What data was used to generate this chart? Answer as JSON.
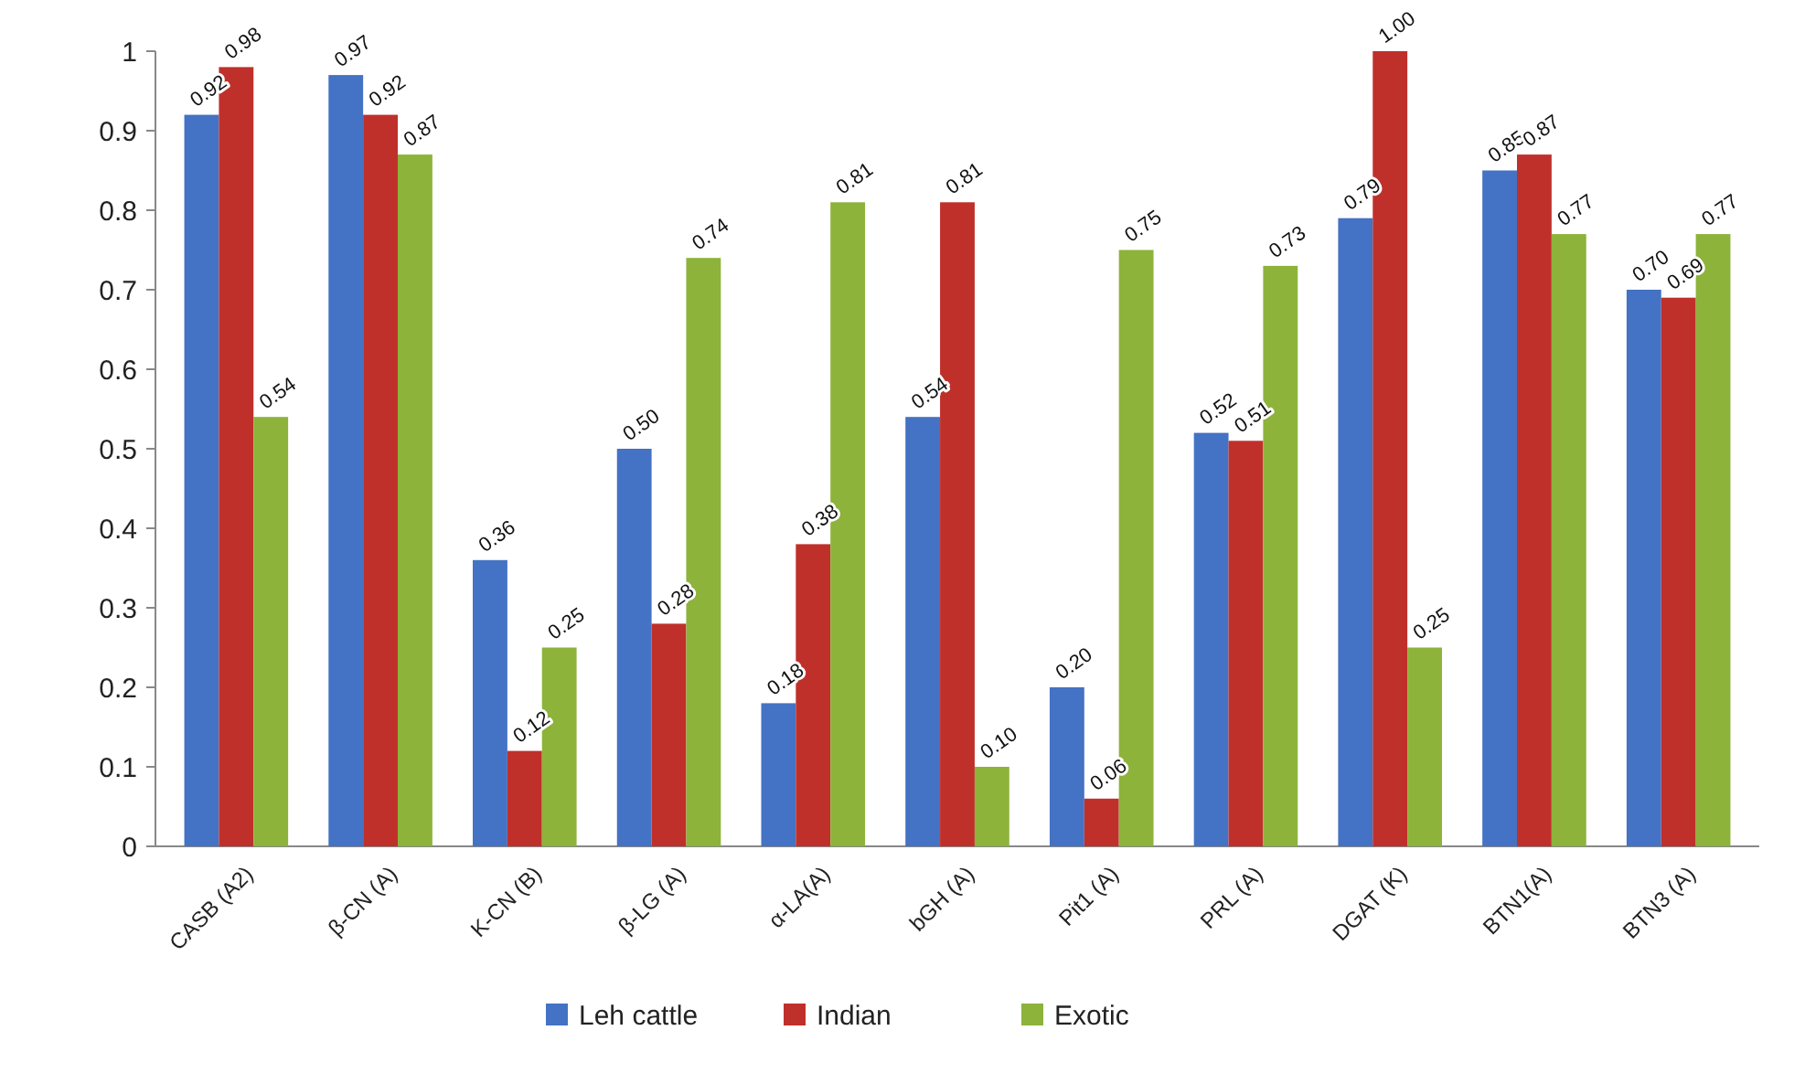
{
  "chart_data": {
    "type": "bar",
    "categories": [
      "CASB (A2)",
      "β-CN (A)",
      "K-CN (B)",
      "β-LG (A)",
      "α-LA(A)",
      "bGH (A)",
      "Pit1 (A)",
      "PRL (A)",
      "DGAT (K)",
      "BTN1(A)",
      "BTN3 (A)"
    ],
    "series": [
      {
        "name": "Leh cattle",
        "color": "#4472c4",
        "values": [
          0.92,
          0.97,
          0.36,
          0.5,
          0.18,
          0.54,
          0.2,
          0.52,
          0.79,
          0.85,
          0.7
        ],
        "value_labels": [
          "0.92",
          "0.97",
          "0.36",
          "0.50",
          "0.18",
          "0.54",
          "0.20",
          "0.52",
          "0.79",
          "0.85",
          "0.70"
        ]
      },
      {
        "name": "Indian",
        "color": "#c0302b",
        "values": [
          0.98,
          0.92,
          0.12,
          0.28,
          0.38,
          0.81,
          0.06,
          0.51,
          1.0,
          0.87,
          0.69
        ],
        "value_labels": [
          "0.98",
          "0.92",
          "0.12",
          "0.28",
          "0.38",
          "0.81",
          "0.06",
          "0.51",
          "1.00",
          "0.87",
          "0.69"
        ]
      },
      {
        "name": "Exotic",
        "color": "#8db33a",
        "values": [
          0.54,
          0.87,
          0.25,
          0.74,
          0.81,
          0.1,
          0.75,
          0.73,
          0.25,
          0.77,
          0.77
        ],
        "value_labels": [
          "0.54",
          "0.87",
          "0.25",
          "0.74",
          "0.81",
          "0.10",
          "0.75",
          "0.73",
          "0.25",
          "0.77",
          "0.77"
        ]
      }
    ],
    "ylim": [
      0,
      1
    ],
    "yticks": [
      0,
      0.1,
      0.2,
      0.3,
      0.4,
      0.5,
      0.6,
      0.7,
      0.8,
      0.9,
      1
    ],
    "legend": "bottom"
  }
}
